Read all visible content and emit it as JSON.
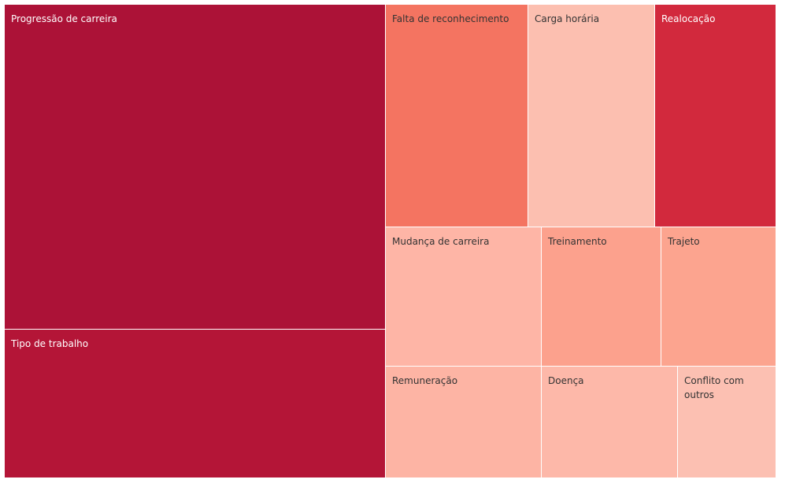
{
  "chart_data": {
    "type": "treemap",
    "items": [
      {
        "label": "Progressão de carreira",
        "value": 200,
        "color": "#ac1237",
        "text_color": "light-on-dark"
      },
      {
        "label": "Tipo de trabalho",
        "value": 91,
        "color": "#b41537",
        "text_color": "light-on-dark"
      },
      {
        "label": "Falta de reconhecimento",
        "value": 42,
        "color": "#f47461",
        "text_color": "dark-on-light"
      },
      {
        "label": "Carga horária",
        "value": 37,
        "color": "#fcbfb0",
        "text_color": "dark-on-light"
      },
      {
        "label": "Realocação",
        "value": 35,
        "color": "#d2293d",
        "text_color": "light-on-dark"
      },
      {
        "label": "Mudança de carreira",
        "value": 28,
        "color": "#feb5a6",
        "text_color": "dark-on-light"
      },
      {
        "label": "Treinamento",
        "value": 21,
        "color": "#fca18d",
        "text_color": "dark-on-light"
      },
      {
        "label": "Trajeto",
        "value": 21,
        "color": "#fca48f",
        "text_color": "dark-on-light"
      },
      {
        "label": "Remuneração",
        "value": 23,
        "color": "#fdb4a4",
        "text_color": "dark-on-light"
      },
      {
        "label": "Doença",
        "value": 20,
        "color": "#fdb8a9",
        "text_color": "dark-on-light"
      },
      {
        "label": "Conflito com outros",
        "value": 14,
        "color": "#fcc0b2",
        "text_color": "dark-on-light"
      }
    ]
  }
}
